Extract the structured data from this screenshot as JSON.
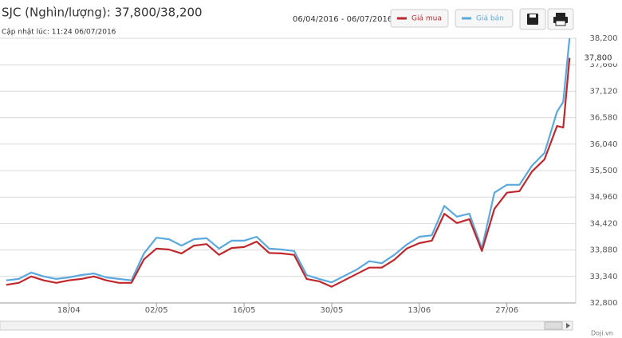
{
  "chart_data": {
    "type": "line",
    "title": "SJC (Nghìn/lượng): 37,800/38,200",
    "subtitle": "Cập nhật lúc: 11:24 06/07/2016",
    "date_range": "06/04/2016 - 06/07/2016",
    "credit": "Doji.vn",
    "annotation": "37,800",
    "x": [
      2,
      4,
      6,
      8,
      10,
      12,
      14,
      16,
      18,
      20,
      22,
      24,
      26,
      28,
      30,
      32,
      34,
      36,
      38,
      40,
      42,
      44,
      46,
      48,
      50,
      52,
      54,
      56,
      58,
      60,
      62,
      64,
      66,
      68,
      70,
      72,
      74,
      76,
      78,
      80,
      82,
      84,
      86,
      88,
      90,
      91,
      92
    ],
    "xlim": [
      1,
      93
    ],
    "xticks": [
      {
        "value": 12,
        "label": "18/04"
      },
      {
        "value": 26,
        "label": "02/05"
      },
      {
        "value": 40,
        "label": "16/05"
      },
      {
        "value": 54,
        "label": "30/05"
      },
      {
        "value": 68,
        "label": "13/06"
      },
      {
        "value": 82,
        "label": "27/06"
      }
    ],
    "ylim": [
      32800,
      38200
    ],
    "yticks": [
      {
        "value": 32800,
        "label": "32,800"
      },
      {
        "value": 33340,
        "label": "33,340"
      },
      {
        "value": 33880,
        "label": "33,880"
      },
      {
        "value": 34420,
        "label": "34,420"
      },
      {
        "value": 34960,
        "label": "34,960"
      },
      {
        "value": 35500,
        "label": "35,500"
      },
      {
        "value": 36040,
        "label": "36,040"
      },
      {
        "value": 36580,
        "label": "36,580"
      },
      {
        "value": 37120,
        "label": "37,120"
      },
      {
        "value": 37660,
        "label": "37,660"
      },
      {
        "value": 38200,
        "label": "38,200"
      }
    ],
    "grid": true,
    "series": [
      {
        "name": "Giá mua",
        "color": "#c0272d",
        "values": [
          33170,
          33210,
          33340,
          33260,
          33210,
          33260,
          33290,
          33340,
          33260,
          33210,
          33210,
          33690,
          33910,
          33890,
          33810,
          33970,
          34000,
          33780,
          33920,
          33940,
          34050,
          33820,
          33810,
          33780,
          33290,
          33240,
          33130,
          33260,
          33390,
          33520,
          33520,
          33680,
          33910,
          34020,
          34070,
          34620,
          34430,
          34510,
          33860,
          34720,
          35050,
          35080,
          35480,
          35730,
          36410,
          36380,
          37800
        ]
      },
      {
        "name": "Giá bán",
        "color": "#5aa9de",
        "values": [
          33260,
          33290,
          33420,
          33340,
          33290,
          33320,
          33370,
          33400,
          33320,
          33290,
          33260,
          33810,
          34130,
          34100,
          33970,
          34100,
          34120,
          33910,
          34070,
          34070,
          34150,
          33910,
          33890,
          33860,
          33370,
          33290,
          33220,
          33350,
          33480,
          33650,
          33610,
          33780,
          33990,
          34150,
          34180,
          34780,
          34560,
          34620,
          33910,
          35050,
          35210,
          35210,
          35600,
          35860,
          36700,
          36900,
          38200
        ]
      }
    ]
  }
}
